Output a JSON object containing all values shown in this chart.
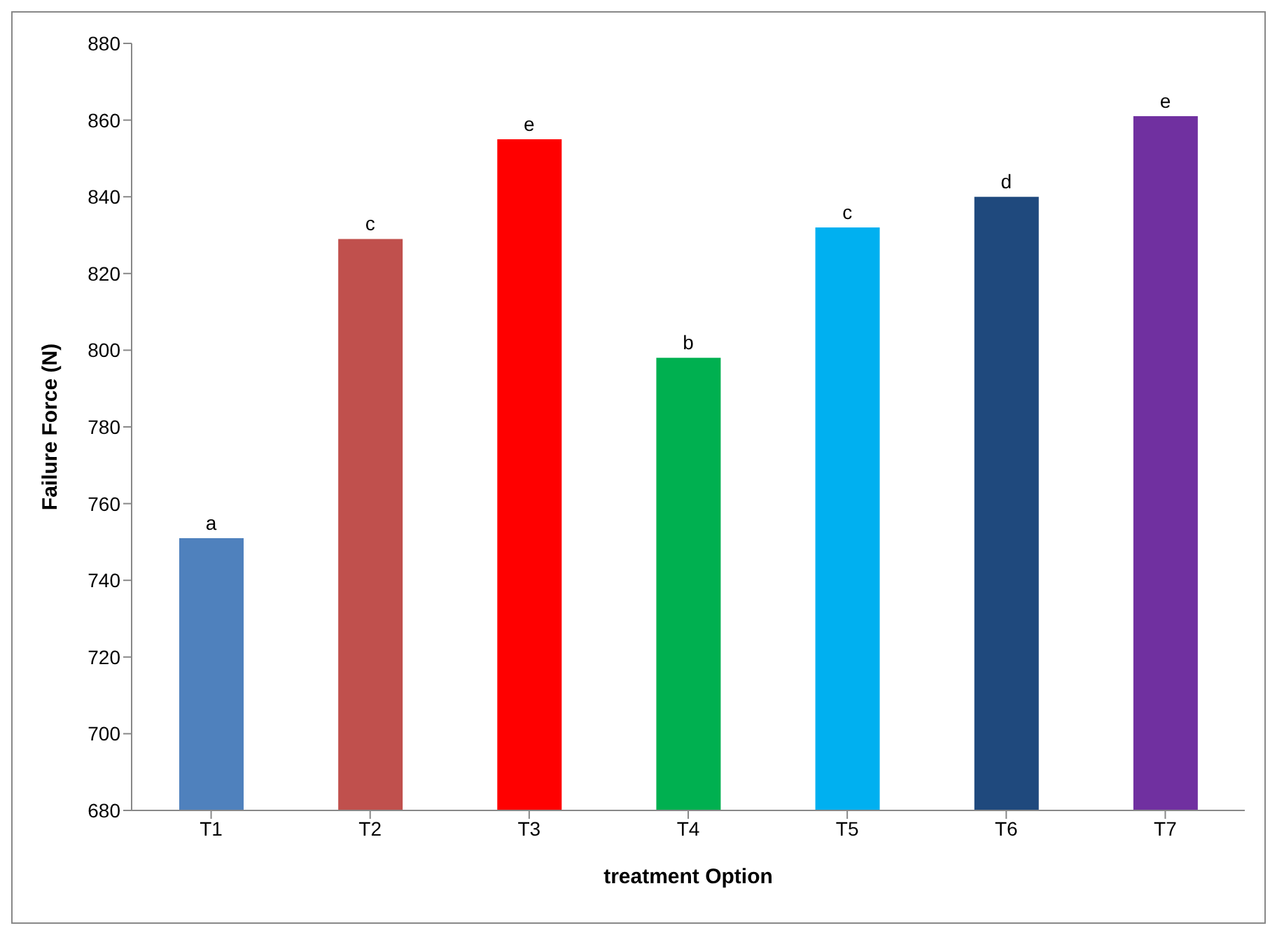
{
  "chart_data": {
    "type": "bar",
    "xlabel": "treatment Option",
    "ylabel": "Failure Force (N)",
    "categories": [
      "T1",
      "T2",
      "T3",
      "T4",
      "T5",
      "T6",
      "T7"
    ],
    "values": [
      751,
      829,
      855,
      798,
      832,
      840,
      861
    ],
    "colors": [
      "#4f81bd",
      "#c0504d",
      "#ff0000",
      "#00b050",
      "#00b0f0",
      "#1f497d",
      "#7030a0"
    ],
    "ylim": [
      680,
      880
    ],
    "yticks": [
      680,
      700,
      720,
      740,
      760,
      780,
      800,
      820,
      840,
      860,
      880
    ],
    "grid": false,
    "legend": false,
    "annotations": [
      {
        "text": "a",
        "x": "T1",
        "y": 751
      },
      {
        "text": "c",
        "x": "T2",
        "y": 829
      },
      {
        "text": "e",
        "x": "T3",
        "y": 855
      },
      {
        "text": "b",
        "x": "T4",
        "y": 798
      },
      {
        "text": "c",
        "x": "T5",
        "y": 832
      },
      {
        "text": "d",
        "x": "T6",
        "y": 840
      },
      {
        "text": "e",
        "x": "T7",
        "y": 861
      }
    ]
  }
}
